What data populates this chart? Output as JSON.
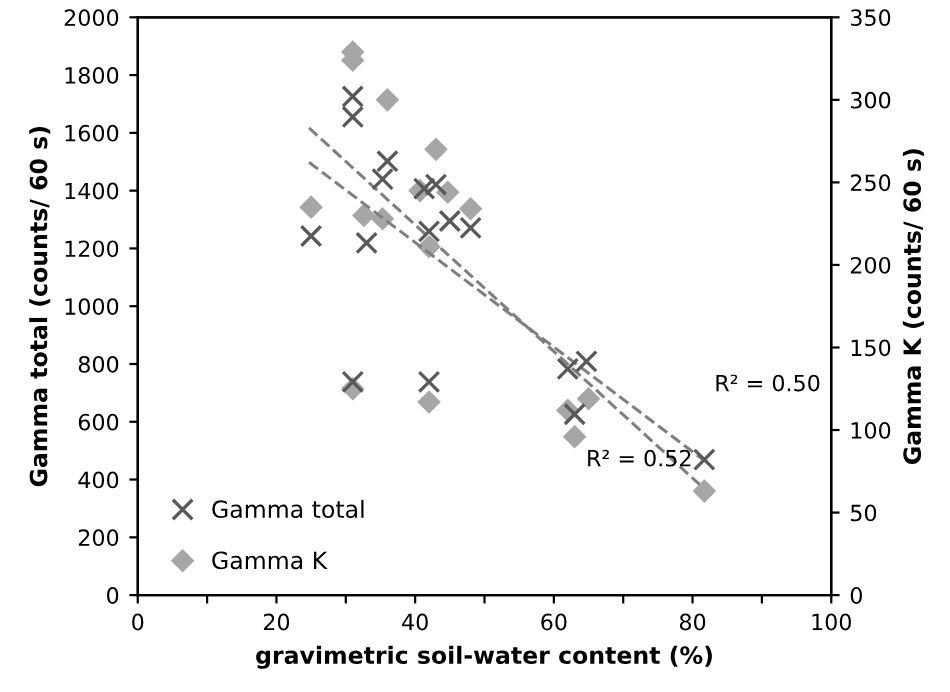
{
  "chart_data": {
    "type": "scatter",
    "xlabel": "gravimetric soil-water content (%)",
    "ylabel": "Gamma total (counts/ 60 s)",
    "y2label": "Gamma K (counts/ 60 s)",
    "xlim": [
      0,
      100
    ],
    "xticks": [
      0,
      {
        "value": 10,
        "label": null
      },
      20,
      {
        "value": 30,
        "label": null
      },
      40,
      {
        "value": 50,
        "label": null
      },
      60,
      {
        "value": 70,
        "label": null
      },
      80,
      {
        "value": 90,
        "label": null
      },
      100
    ],
    "ylim": [
      0,
      2000
    ],
    "yticks": [
      0,
      200,
      400,
      600,
      800,
      1000,
      1200,
      1400,
      1600,
      1800,
      2000
    ],
    "y2lim": [
      0,
      350
    ],
    "y2ticks": [
      0,
      50,
      100,
      150,
      200,
      250,
      300,
      350
    ],
    "grid": false,
    "legend": "bottom left",
    "series": [
      {
        "name": "Gamma total",
        "color": "#595959",
        "marker": "cross",
        "x": [
          25,
          31,
          31,
          31,
          33,
          35.3,
          36,
          43,
          41.3,
          42,
          42,
          45,
          48,
          62,
          63,
          64.7,
          81.7
        ],
        "values": [
          1243,
          1726,
          1655,
          738,
          1219,
          1440,
          1502,
          1421,
          1407,
          1259,
          738,
          1295,
          1271,
          783,
          626,
          809,
          469
        ]
      },
      {
        "name": "Gamma K",
        "color": "#a6a6a6",
        "marker": "diamond",
        "axis": "y2",
        "x": [
          25,
          31,
          31,
          31,
          32.6,
          35.3,
          36,
          43,
          40.7,
          44.7,
          48,
          42,
          42,
          62,
          63,
          65,
          81.7
        ],
        "values": [
          235,
          329,
          324,
          125,
          230,
          228,
          300,
          270,
          245,
          244,
          234,
          211,
          117,
          112,
          96,
          119,
          63
        ]
      },
      {
        "type": "line",
        "color": "#7f7f7f",
        "line_style": "dashed",
        "marker": "none",
        "x": [
          24.7,
          81.8
        ],
        "values": [
          1498,
          464
        ]
      },
      {
        "type": "line",
        "color": "#7f7f7f",
        "line_style": "dashed",
        "marker": "none",
        "axis": "y2",
        "x": [
          24.7,
          81.8
        ],
        "values": [
          283,
          64
        ]
      }
    ],
    "annotations": [
      "R² = 0.50",
      "R² = 0.52"
    ]
  }
}
